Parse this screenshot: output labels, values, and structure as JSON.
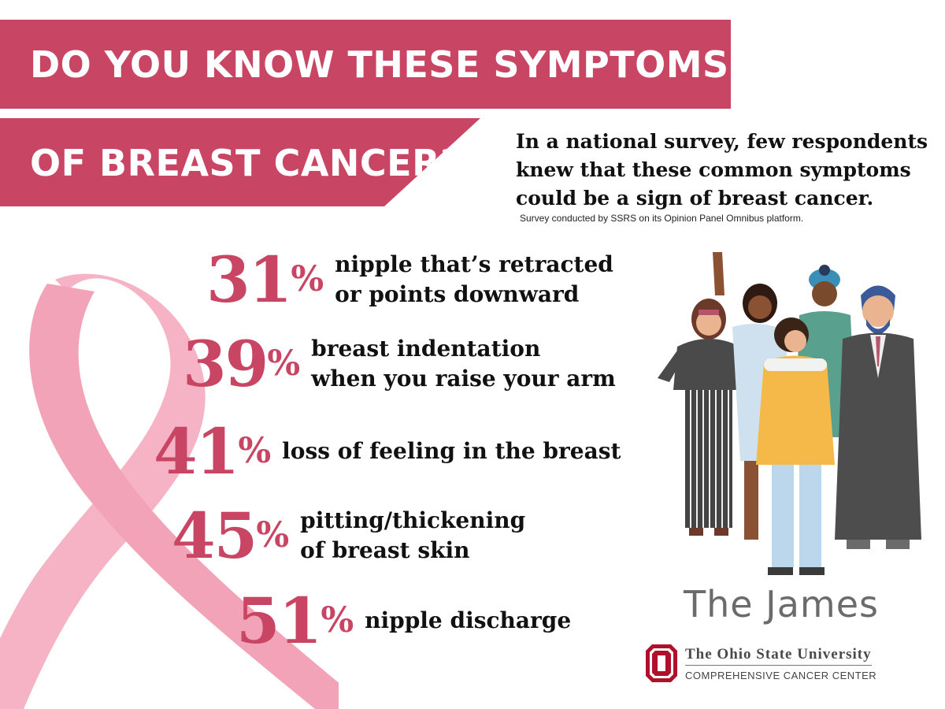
{
  "header": {
    "line1": "DO YOU KNOW THESE SYMPTOMS",
    "line2": "OF BREAST CANCER?"
  },
  "intro": {
    "text": "In a national survey, few respondents knew that these common symptoms could be a sign of breast cancer.",
    "source": "Survey conducted by SSRS on its Opinion Panel Omnibus platform."
  },
  "stats": [
    {
      "value": "31",
      "symbol": "%",
      "line1": "nipple that’s retracted",
      "line2": "or points downward"
    },
    {
      "value": "39",
      "symbol": "%",
      "line1": "breast indentation",
      "line2": "when you raise your arm"
    },
    {
      "value": "41",
      "symbol": "%",
      "line1": "loss of feeling in the breast",
      "line2": ""
    },
    {
      "value": "45",
      "symbol": "%",
      "line1": "pitting/thickening",
      "line2": "of breast skin"
    },
    {
      "value": "51",
      "symbol": "%",
      "line1": "nipple discharge",
      "line2": ""
    }
  ],
  "branding": {
    "name": "The James",
    "university": "The Ohio State University",
    "center": "COMPREHENSIVE CANCER CENTER"
  },
  "colors": {
    "accent": "#c94564",
    "ribbon": "#f5b3c5",
    "text": "#111111"
  },
  "icons": {
    "ribbon": "pink-ribbon-icon",
    "people": "people-group-illustration",
    "logo": "ohio-state-block-o-logo"
  }
}
